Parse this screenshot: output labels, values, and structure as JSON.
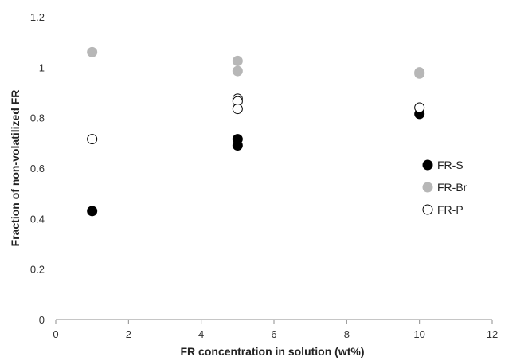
{
  "chart_data": {
    "type": "scatter",
    "title": "",
    "xlabel": "FR concentration in solution (wt%)",
    "ylabel": "Fraction of non-volatilized FR",
    "xlim": [
      0,
      12
    ],
    "ylim": [
      0,
      1.2
    ],
    "xticks": [
      "0",
      "2",
      "4",
      "6",
      "8",
      "10",
      "12"
    ],
    "yticks": [
      "0",
      "0.2",
      "0.4",
      "0.6",
      "0.8",
      "1",
      "1.2"
    ],
    "grid": false,
    "legend_position": "right",
    "series": [
      {
        "name": "FR-S",
        "color": "#000000",
        "marker": "filled-circle",
        "points": [
          {
            "x": 1,
            "y": 0.43
          },
          {
            "x": 5,
            "y": 0.715
          },
          {
            "x": 5,
            "y": 0.69
          },
          {
            "x": 10,
            "y": 0.815
          }
        ]
      },
      {
        "name": "FR-Br",
        "color": "#b7b7b7",
        "marker": "filled-circle",
        "points": [
          {
            "x": 1,
            "y": 1.06
          },
          {
            "x": 5,
            "y": 1.025
          },
          {
            "x": 5,
            "y": 0.985
          },
          {
            "x": 10,
            "y": 0.98
          },
          {
            "x": 10,
            "y": 0.975
          }
        ]
      },
      {
        "name": "FR-P",
        "color": "#000000",
        "marker": "open-circle",
        "points": [
          {
            "x": 1,
            "y": 0.715
          },
          {
            "x": 5,
            "y": 0.875
          },
          {
            "x": 5,
            "y": 0.865
          },
          {
            "x": 5,
            "y": 0.835
          },
          {
            "x": 10,
            "y": 0.84
          }
        ]
      }
    ]
  }
}
